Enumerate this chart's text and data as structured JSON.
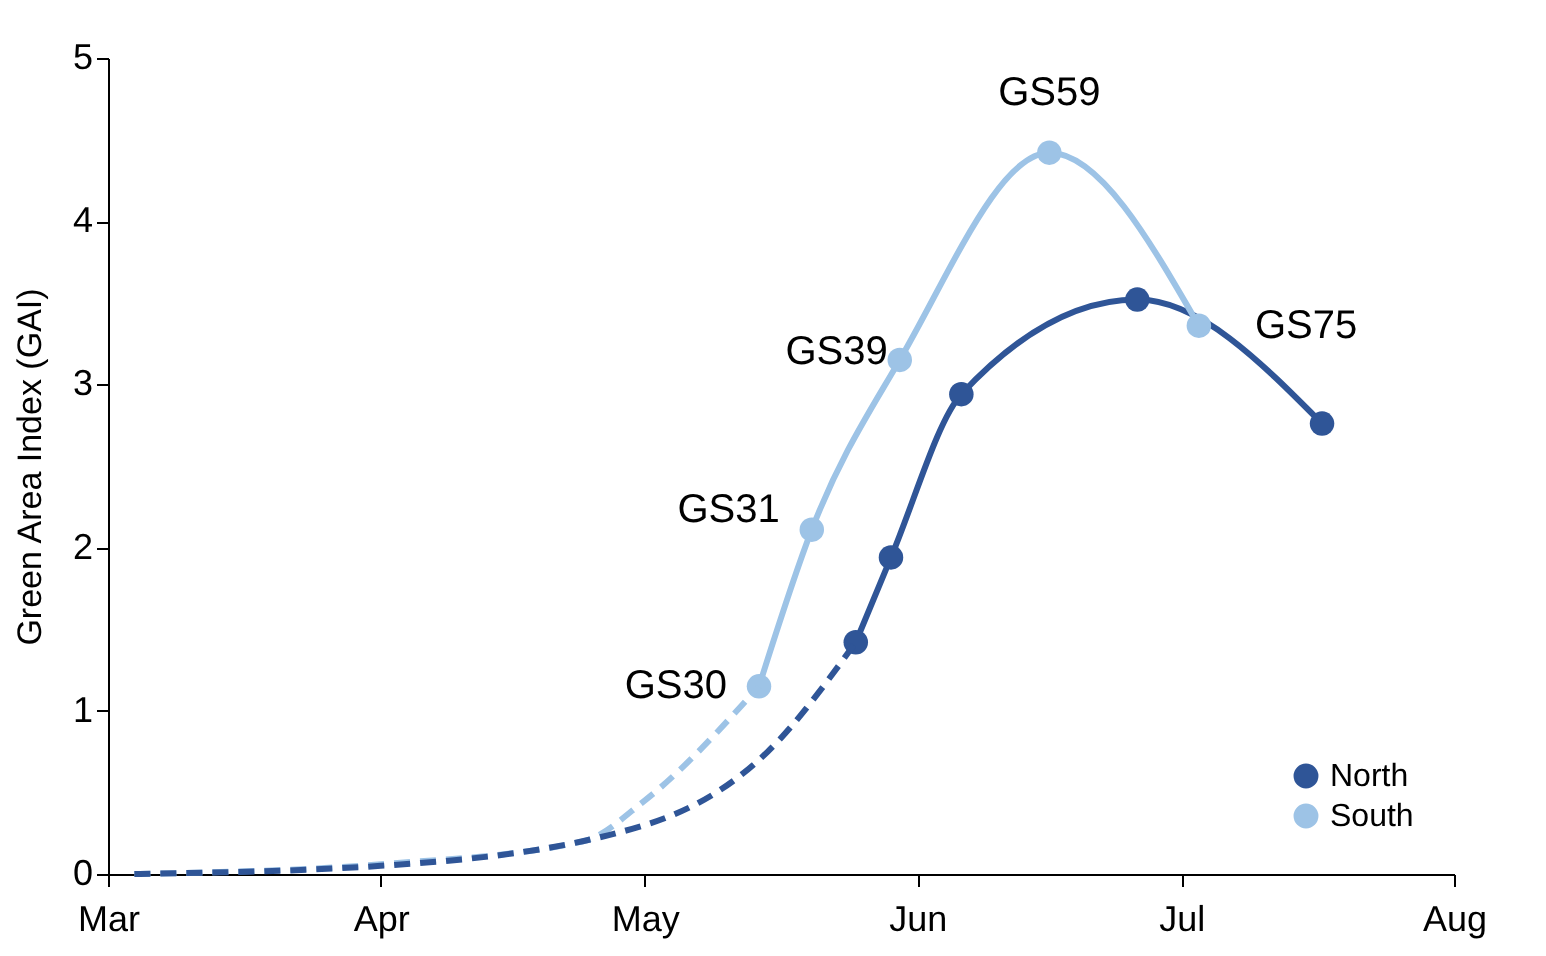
{
  "chart_data": {
    "type": "line",
    "ylabel": "Green Area Index (GAI)",
    "xlim": [
      "--03-01",
      "--08-01"
    ],
    "xticks": [
      {
        "value": "--03-01",
        "label": "Mar"
      },
      {
        "value": "--04-01",
        "label": "Apr"
      },
      {
        "value": "--05-01",
        "label": "May"
      },
      {
        "value": "--06-01",
        "label": "Jun"
      },
      {
        "value": "--07-01",
        "label": "Jul"
      },
      {
        "value": "--08-01",
        "label": "Aug"
      }
    ],
    "ylim": [
      0,
      5
    ],
    "yticks": [
      0,
      1,
      2,
      3,
      4,
      5
    ],
    "grid": false,
    "legend": "bottom right",
    "series": [
      {
        "name": "North",
        "color": "#2f5597",
        "marker": "circle",
        "line_style": "solid",
        "x": [
          "--05-25",
          "--05-29",
          "--06-06",
          "--06-26",
          "--07-17"
        ],
        "values": [
          1.42,
          1.94,
          2.94,
          3.52,
          2.76
        ]
      },
      {
        "name": "South",
        "color": "#9dc3e6",
        "marker": "circle",
        "line_style": "solid",
        "x": [
          "--05-14",
          "--05-20",
          "--05-30",
          "--06-16",
          "--07-03"
        ],
        "values": [
          1.15,
          2.11,
          3.15,
          4.42,
          3.36
        ]
      },
      {
        "color": "#9dc3e6",
        "marker": "none",
        "line_style": "dashed",
        "x": [
          "--03-04",
          "--04-01",
          "--04-24",
          "--05-01",
          "--05-14"
        ],
        "values": [
          0,
          0.06,
          0.2,
          0.45,
          1.15
        ]
      },
      {
        "color": "#2f5597",
        "marker": "none",
        "line_style": "dashed",
        "x": [
          "--03-04",
          "--04-01",
          "--05-01",
          "--05-15",
          "--05-25"
        ],
        "values": [
          0,
          0.05,
          0.3,
          0.75,
          1.42
        ]
      }
    ],
    "annotations": [
      {
        "text": "GS30",
        "x": "--05-14",
        "y": 1.15
      },
      {
        "text": "GS31",
        "x": "--05-20",
        "y": 2.11
      },
      {
        "text": "GS39",
        "x": "--05-30",
        "y": 3.15
      },
      {
        "text": "GS59",
        "x": "--06-16",
        "y": 4.42
      },
      {
        "text": "GS75",
        "x": "--07-03",
        "y": 3.36
      }
    ]
  }
}
